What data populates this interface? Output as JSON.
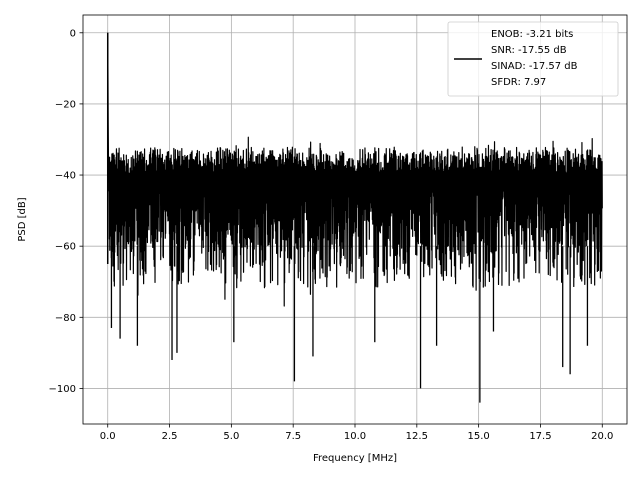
{
  "chart_data": {
    "type": "line",
    "xlabel": "Frequency [MHz]",
    "ylabel": "PSD [dB]",
    "xlim": [
      -1.0,
      21.0
    ],
    "ylim": [
      -110,
      5
    ],
    "xticks": [
      0.0,
      2.5,
      5.0,
      7.5,
      10.0,
      12.5,
      15.0,
      17.5,
      20.0
    ],
    "xtick_labels": [
      "0.0",
      "2.5",
      "5.0",
      "7.5",
      "10.0",
      "12.5",
      "15.0",
      "17.5",
      "20.0"
    ],
    "yticks": [
      0,
      -20,
      -40,
      -60,
      -80,
      -100
    ],
    "ytick_labels": [
      "0",
      "−20",
      "−40",
      "−60",
      "−80",
      "−100"
    ],
    "grid": true,
    "legend_position": "top-right",
    "series": [
      {
        "name": "ENOB: -3.21 bits\nSNR: -17.55 dB\nSINAD: -17.57 dB\nSFDR: 7.97",
        "color": "#000000",
        "description": "dense noise floor",
        "peak": {
          "x": 0.0,
          "y": 0.0
        },
        "upper_envelope_db": -32,
        "lower_envelope_db": -72,
        "notable_dips": [
          {
            "x": 0.15,
            "y": -83
          },
          {
            "x": 0.5,
            "y": -86
          },
          {
            "x": 1.2,
            "y": -88
          },
          {
            "x": 2.6,
            "y": -92
          },
          {
            "x": 2.8,
            "y": -90
          },
          {
            "x": 5.1,
            "y": -87
          },
          {
            "x": 7.55,
            "y": -98
          },
          {
            "x": 8.3,
            "y": -91
          },
          {
            "x": 10.8,
            "y": -87
          },
          {
            "x": 12.65,
            "y": -100
          },
          {
            "x": 13.3,
            "y": -88
          },
          {
            "x": 15.05,
            "y": -104
          },
          {
            "x": 15.6,
            "y": -84
          },
          {
            "x": 18.4,
            "y": -94
          },
          {
            "x": 18.7,
            "y": -96
          },
          {
            "x": 19.4,
            "y": -88
          }
        ]
      }
    ]
  },
  "legend": {
    "lines": [
      "ENOB: -3.21 bits",
      "SNR: -17.55 dB",
      "SINAD: -17.57 dB",
      "SFDR: 7.97"
    ]
  }
}
